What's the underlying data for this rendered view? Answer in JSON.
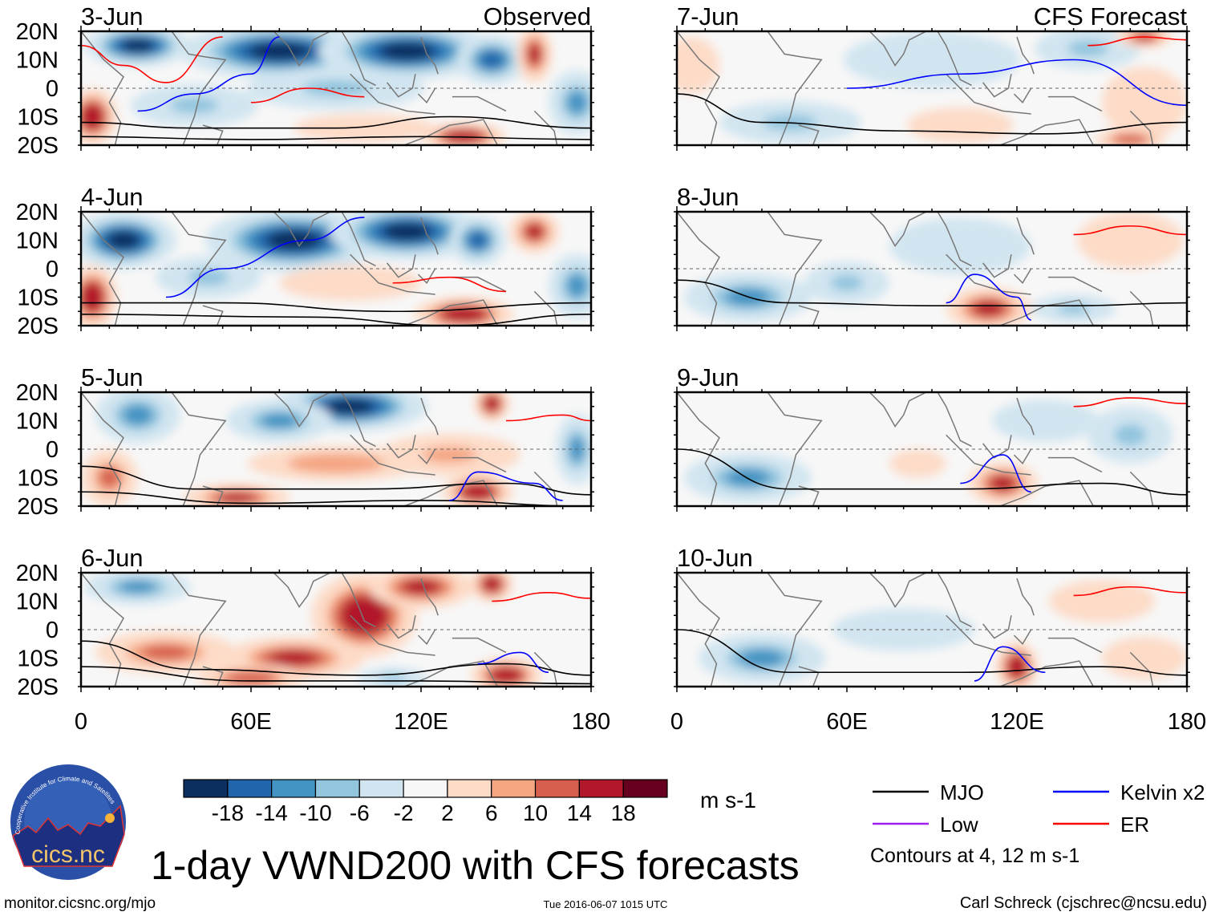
{
  "chart_data": {
    "type": "heatmap",
    "title": "1-day VWND200 with CFS forecasts",
    "units": "m s-1",
    "observed_label": "Observed",
    "forecast_label": "CFS Forecast",
    "lat_ticks": [
      "20N",
      "10N",
      "0",
      "10S",
      "20S"
    ],
    "lon_ticks": [
      "0",
      "60E",
      "120E",
      "180"
    ],
    "lon_range": [
      0,
      180
    ],
    "lat_range": [
      -20,
      20
    ],
    "colorbar": {
      "levels": [
        "-18",
        "-14",
        "-10",
        "-6",
        "-2",
        "2",
        "6",
        "10",
        "14",
        "18"
      ],
      "colors": [
        "#0b2f5f",
        "#2166ac",
        "#4393c3",
        "#92c5de",
        "#d1e5f0",
        "#f7f7f7",
        "#fddbc7",
        "#f4a582",
        "#d6604d",
        "#b2182b",
        "#67001f"
      ]
    },
    "legend": [
      {
        "label": "MJO",
        "color": "#000000"
      },
      {
        "label": "Kelvin x2",
        "color": "#0000ff"
      },
      {
        "label": "Low",
        "color": "#a020f0"
      },
      {
        "label": "ER",
        "color": "#ff0000"
      }
    ],
    "contour_note": "Contours at 4, 12 m s-1",
    "panels": [
      {
        "date": "3-Jun",
        "kind": "observed",
        "blobs": [
          [
            70,
            13,
            28,
            8,
            -20
          ],
          [
            115,
            13,
            25,
            8,
            -20
          ],
          [
            20,
            15,
            15,
            6,
            -18
          ],
          [
            145,
            10,
            10,
            7,
            -16
          ],
          [
            90,
            0,
            25,
            6,
            -8
          ],
          [
            160,
            12,
            5,
            8,
            16
          ],
          [
            4,
            -10,
            7,
            8,
            18
          ],
          [
            135,
            -17,
            12,
            4,
            18
          ],
          [
            175,
            -5,
            8,
            9,
            -12
          ],
          [
            40,
            -6,
            18,
            6,
            -6
          ],
          [
            100,
            -14,
            20,
            4,
            6
          ]
        ],
        "contours": [
          {
            "type": "MJO",
            "points": [
              [
                0,
                -12
              ],
              [
                40,
                -14
              ],
              [
                90,
                -14
              ],
              [
                130,
                -10
              ],
              [
                180,
                -14
              ]
            ]
          },
          {
            "type": "MJO",
            "points": [
              [
                0,
                -17
              ],
              [
                60,
                -18
              ],
              [
                120,
                -17
              ],
              [
                180,
                -18
              ]
            ]
          },
          {
            "type": "Kelvin",
            "points": [
              [
                20,
                -8
              ],
              [
                40,
                -2
              ],
              [
                60,
                5
              ],
              [
                70,
                18
              ]
            ]
          },
          {
            "type": "ER",
            "points": [
              [
                0,
                15
              ],
              [
                15,
                8
              ],
              [
                30,
                2
              ],
              [
                50,
                18
              ]
            ]
          },
          {
            "type": "ER",
            "points": [
              [
                60,
                -5
              ],
              [
                80,
                0
              ],
              [
                100,
                -3
              ]
            ]
          }
        ]
      },
      {
        "date": "4-Jun",
        "kind": "observed",
        "blobs": [
          [
            75,
            10,
            25,
            9,
            -20
          ],
          [
            115,
            13,
            22,
            8,
            -20
          ],
          [
            15,
            10,
            15,
            8,
            -18
          ],
          [
            140,
            10,
            8,
            7,
            -16
          ],
          [
            160,
            13,
            7,
            6,
            16
          ],
          [
            4,
            -10,
            7,
            9,
            18
          ],
          [
            135,
            -16,
            14,
            5,
            18
          ],
          [
            175,
            -6,
            8,
            9,
            -12
          ],
          [
            95,
            -5,
            20,
            5,
            6
          ],
          [
            45,
            -3,
            15,
            6,
            -6
          ]
        ],
        "contours": [
          {
            "type": "MJO",
            "points": [
              [
                0,
                -12
              ],
              [
                50,
                -12
              ],
              [
                110,
                -15
              ],
              [
                180,
                -12
              ]
            ]
          },
          {
            "type": "MJO",
            "points": [
              [
                0,
                -16
              ],
              [
                80,
                -17
              ],
              [
                130,
                -20
              ],
              [
                180,
                -16
              ]
            ]
          },
          {
            "type": "Kelvin",
            "points": [
              [
                30,
                -10
              ],
              [
                50,
                0
              ],
              [
                80,
                10
              ],
              [
                100,
                18
              ]
            ]
          },
          {
            "type": "ER",
            "points": [
              [
                110,
                -5
              ],
              [
                130,
                -3
              ],
              [
                150,
                -8
              ]
            ]
          }
        ]
      },
      {
        "date": "5-Jun",
        "kind": "observed",
        "blobs": [
          [
            95,
            15,
            22,
            7,
            -20
          ],
          [
            70,
            10,
            15,
            6,
            -12
          ],
          [
            20,
            12,
            12,
            8,
            -10
          ],
          [
            145,
            16,
            5,
            5,
            18
          ],
          [
            90,
            -5,
            25,
            5,
            10
          ],
          [
            130,
            -2,
            20,
            6,
            8
          ],
          [
            55,
            -17,
            15,
            4,
            16
          ],
          [
            140,
            -15,
            10,
            5,
            18
          ],
          [
            10,
            -10,
            8,
            8,
            12
          ],
          [
            175,
            0,
            6,
            10,
            -10
          ]
        ],
        "contours": [
          {
            "type": "MJO",
            "points": [
              [
                0,
                -6
              ],
              [
                40,
                -14
              ],
              [
                100,
                -14
              ],
              [
                150,
                -12
              ],
              [
                180,
                -16
              ]
            ]
          },
          {
            "type": "MJO",
            "points": [
              [
                0,
                -15
              ],
              [
                60,
                -19
              ],
              [
                120,
                -18
              ],
              [
                180,
                -20
              ]
            ]
          },
          {
            "type": "Kelvin",
            "points": [
              [
                130,
                -18
              ],
              [
                140,
                -8
              ],
              [
                160,
                -12
              ],
              [
                170,
                -18
              ]
            ]
          },
          {
            "type": "ER",
            "points": [
              [
                150,
                10
              ],
              [
                170,
                12
              ],
              [
                180,
                10
              ]
            ]
          }
        ]
      },
      {
        "date": "6-Jun",
        "kind": "observed",
        "blobs": [
          [
            100,
            5,
            15,
            12,
            18
          ],
          [
            75,
            -10,
            20,
            6,
            16
          ],
          [
            120,
            15,
            15,
            6,
            16
          ],
          [
            145,
            16,
            6,
            5,
            18
          ],
          [
            30,
            -8,
            20,
            6,
            12
          ],
          [
            150,
            -16,
            10,
            5,
            18
          ],
          [
            60,
            -17,
            15,
            4,
            14
          ],
          [
            20,
            15,
            15,
            5,
            -12
          ],
          [
            110,
            -17,
            10,
            3,
            -6
          ]
        ],
        "contours": [
          {
            "type": "MJO",
            "points": [
              [
                0,
                -4
              ],
              [
                40,
                -14
              ],
              [
                100,
                -16
              ],
              [
                150,
                -12
              ],
              [
                180,
                -16
              ]
            ]
          },
          {
            "type": "MJO",
            "points": [
              [
                0,
                -13
              ],
              [
                60,
                -18
              ],
              [
                120,
                -18
              ],
              [
                180,
                -19
              ]
            ]
          },
          {
            "type": "Kelvin",
            "points": [
              [
                140,
                -12
              ],
              [
                155,
                -8
              ],
              [
                165,
                -15
              ]
            ]
          },
          {
            "type": "ER",
            "points": [
              [
                145,
                10
              ],
              [
                165,
                13
              ],
              [
                180,
                11
              ]
            ]
          }
        ]
      },
      {
        "date": "7-Jun",
        "kind": "forecast",
        "blobs": [
          [
            145,
            14,
            15,
            6,
            -8
          ],
          [
            90,
            10,
            25,
            8,
            -4
          ],
          [
            40,
            -12,
            20,
            6,
            -8
          ],
          [
            100,
            -13,
            15,
            5,
            6
          ],
          [
            165,
            -5,
            12,
            10,
            6
          ],
          [
            165,
            18,
            8,
            3,
            16
          ],
          [
            160,
            -18,
            10,
            3,
            14
          ],
          [
            5,
            8,
            8,
            8,
            4
          ]
        ],
        "contours": [
          {
            "type": "MJO",
            "points": [
              [
                0,
                -2
              ],
              [
                30,
                -12
              ],
              [
                80,
                -15
              ],
              [
                130,
                -16
              ],
              [
                180,
                -12
              ]
            ]
          },
          {
            "type": "Kelvin",
            "points": [
              [
                60,
                0
              ],
              [
                100,
                5
              ],
              [
                140,
                10
              ],
              [
                180,
                -6
              ]
            ]
          },
          {
            "type": "ER",
            "points": [
              [
                145,
                15
              ],
              [
                165,
                18
              ],
              [
                180,
                17
              ]
            ]
          }
        ]
      },
      {
        "date": "8-Jun",
        "kind": "forecast",
        "blobs": [
          [
            110,
            -14,
            12,
            6,
            16
          ],
          [
            25,
            -10,
            18,
            7,
            -10
          ],
          [
            100,
            8,
            20,
            8,
            -4
          ],
          [
            160,
            10,
            15,
            8,
            6
          ],
          [
            140,
            -14,
            12,
            4,
            -6
          ],
          [
            60,
            -5,
            12,
            6,
            -6
          ]
        ],
        "contours": [
          {
            "type": "MJO",
            "points": [
              [
                0,
                -4
              ],
              [
                40,
                -12
              ],
              [
                90,
                -13
              ],
              [
                140,
                -13
              ],
              [
                180,
                -12
              ]
            ]
          },
          {
            "type": "Kelvin",
            "points": [
              [
                95,
                -12
              ],
              [
                105,
                -2
              ],
              [
                120,
                -10
              ],
              [
                125,
                -18
              ]
            ]
          },
          {
            "type": "ER",
            "points": [
              [
                140,
                12
              ],
              [
                160,
                15
              ],
              [
                180,
                12
              ]
            ]
          }
        ]
      },
      {
        "date": "9-Jun",
        "kind": "forecast",
        "blobs": [
          [
            115,
            -12,
            10,
            6,
            16
          ],
          [
            25,
            -10,
            18,
            7,
            -10
          ],
          [
            85,
            -5,
            8,
            4,
            6
          ],
          [
            160,
            5,
            12,
            8,
            -6
          ],
          [
            130,
            10,
            15,
            6,
            -4
          ]
        ],
        "contours": [
          {
            "type": "MJO",
            "points": [
              [
                0,
                0
              ],
              [
                40,
                -14
              ],
              [
                100,
                -14
              ],
              [
                150,
                -12
              ],
              [
                180,
                -16
              ]
            ]
          },
          {
            "type": "Kelvin",
            "points": [
              [
                100,
                -12
              ],
              [
                115,
                -2
              ],
              [
                125,
                -15
              ]
            ]
          },
          {
            "type": "ER",
            "points": [
              [
                140,
                15
              ],
              [
                160,
                18
              ],
              [
                180,
                16
              ]
            ]
          }
        ]
      },
      {
        "date": "10-Jun",
        "kind": "forecast",
        "blobs": [
          [
            120,
            -13,
            6,
            7,
            18
          ],
          [
            30,
            -10,
            18,
            7,
            -10
          ],
          [
            150,
            10,
            15,
            6,
            6
          ],
          [
            80,
            0,
            20,
            6,
            -4
          ],
          [
            165,
            -10,
            12,
            6,
            4
          ]
        ],
        "contours": [
          {
            "type": "MJO",
            "points": [
              [
                0,
                0
              ],
              [
                40,
                -15
              ],
              [
                100,
                -15
              ],
              [
                150,
                -13
              ],
              [
                180,
                -16
              ]
            ]
          },
          {
            "type": "Kelvin",
            "points": [
              [
                105,
                -18
              ],
              [
                115,
                -6
              ],
              [
                130,
                -15
              ]
            ]
          },
          {
            "type": "ER",
            "points": [
              [
                140,
                12
              ],
              [
                160,
                15
              ],
              [
                180,
                13
              ]
            ]
          }
        ]
      }
    ]
  },
  "footer": {
    "url": "monitor.cicsnc.org/mjo",
    "timestamp": "Tue 2016-06-07 1015 UTC",
    "credit": "Carl Schreck (cjschrec@ncsu.edu)",
    "logo_text": "cics.nc",
    "logo_ring": "Cooperative Institute for Climate and Satellites"
  }
}
